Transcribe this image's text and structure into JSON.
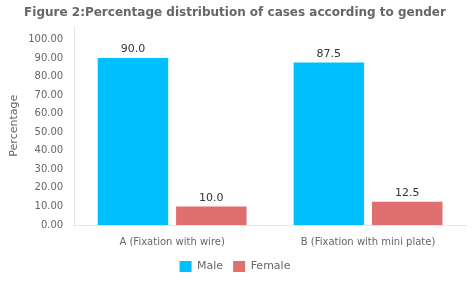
{
  "chart_data": {
    "type": "bar",
    "title": "Figure 2:Percentage distribution of cases according to gender",
    "y_label": "Percentage",
    "categories": [
      "A (Fixation with wire)",
      "B (Fixation with mini plate)"
    ],
    "series": [
      {
        "name": "Male",
        "color": "#00BFFF",
        "values": [
          90.0,
          87.5
        ],
        "value_labels": [
          "90.0",
          "87.5"
        ]
      },
      {
        "name": "Female",
        "color": "#E07070",
        "values": [
          10.0,
          12.5
        ],
        "value_labels": [
          "10.0",
          "12.5"
        ]
      }
    ],
    "ylim": [
      0,
      107
    ],
    "yticks": [
      {
        "value": 0,
        "label": "0.00"
      },
      {
        "value": 10,
        "label": "10.00"
      },
      {
        "value": 20,
        "label": "20.00"
      },
      {
        "value": 30,
        "label": "30.00"
      },
      {
        "value": 40,
        "label": "40.00"
      },
      {
        "value": 50,
        "label": "50.00"
      },
      {
        "value": 60,
        "label": "60.00"
      },
      {
        "value": 70,
        "label": "70.00"
      },
      {
        "value": 80,
        "label": "80.00"
      },
      {
        "value": 90,
        "label": "90.00"
      },
      {
        "value": 100,
        "label": "100.00"
      }
    ],
    "data_labels": true,
    "grid": false,
    "legend": "bottom"
  }
}
